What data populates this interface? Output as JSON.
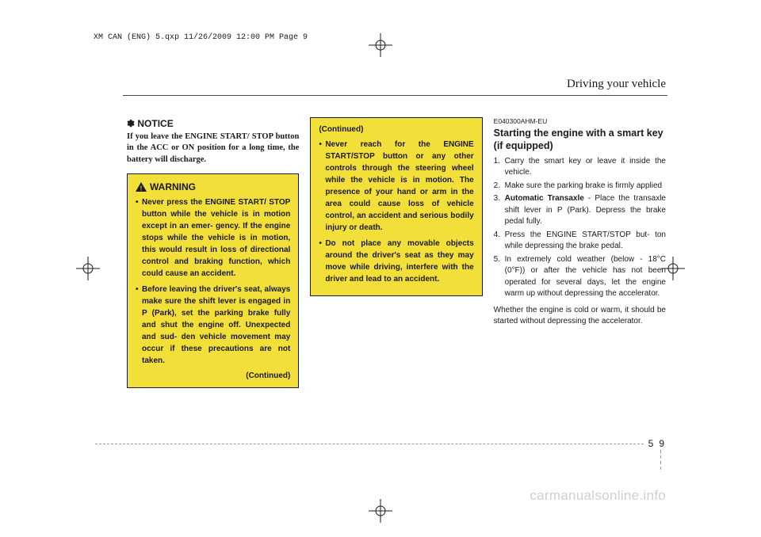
{
  "print_header": "XM CAN (ENG) 5.qxp  11/26/2009  12:00 PM  Page 9",
  "section_title": "Driving your vehicle",
  "notice": {
    "head": "✽ NOTICE",
    "body": "If you leave the ENGINE START/ STOP button in the ACC or ON position for a long time, the battery will discharge."
  },
  "warning": {
    "title": "WARNING",
    "items": [
      "Never press the ENGINE START/ STOP button while the vehicle is in motion except in an emer- gency. If the engine stops while the vehicle is in motion, this would result in loss of directional control and braking function, which could cause an accident.",
      "Before leaving the driver's seat, always make sure the shift lever is engaged in P (Park), set the parking brake fully and shut the engine off. Unexpected and sud- den vehicle movement may occur if these precautions are not taken."
    ],
    "continued": "(Continued)"
  },
  "warning2": {
    "continued": "(Continued)",
    "items": [
      "Never reach for the ENGINE START/STOP button or any other controls through the steering wheel while the vehicle is in motion. The presence of your hand or arm in the area could cause loss of vehicle control, an accident and serious bodily injury or death.",
      "Do not place any movable objects around the driver's seat as they may move while driving, interfere with the driver and lead to an accident."
    ]
  },
  "col3": {
    "code": "E040300AHM-EU",
    "heading": "Starting the engine with a smart key (if equipped)",
    "steps": [
      "Carry the smart key or leave it inside the vehicle.",
      "Make sure the parking brake is firmly applied",
      "<b>Automatic Transaxle</b> - Place the transaxle shift lever in P (Park). Depress the brake pedal fully.",
      "Press the ENGINE START/STOP but- ton while depressing the brake pedal.",
      "In extremely cold weather (below - 18°C (0°F)) or after the vehicle has not been operated for several days, let the engine warm up without depressing the accelerator."
    ],
    "para": "Whether the engine is cold or warm, it should be started without depressing the accelerator."
  },
  "page": {
    "section": "5",
    "num": "9"
  },
  "watermark": "carmanualsonline.info",
  "colors": {
    "warn_bg": "#f3df3a",
    "text": "#1a1a1a",
    "dash": "#9a9a9a",
    "wm": "#cfcfcf"
  }
}
